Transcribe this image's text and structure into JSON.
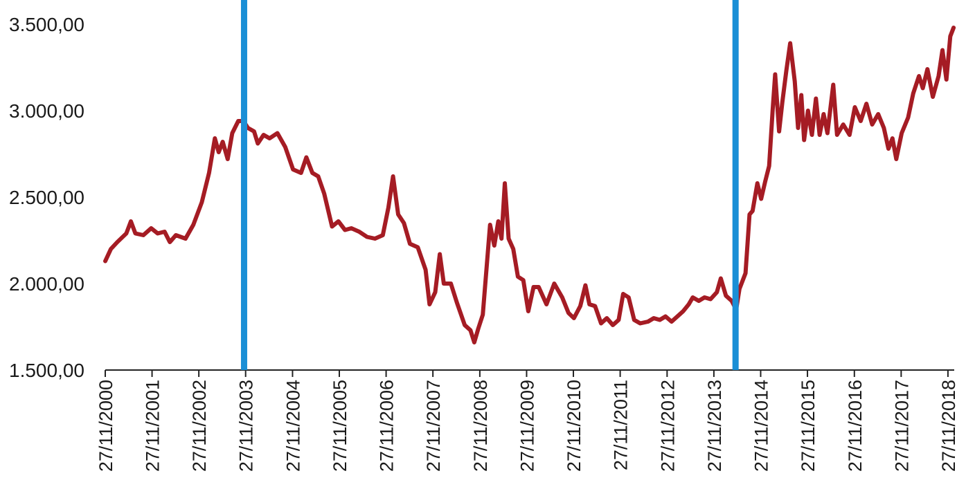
{
  "chart_data": {
    "type": "line",
    "title": "",
    "xlabel": "",
    "ylabel": "",
    "ylim": [
      1500,
      3500
    ],
    "xlim": [
      "2000-11-27",
      "2019-01-15"
    ],
    "y_ticks": [
      {
        "value": 1500,
        "label": "1.500,00"
      },
      {
        "value": 2000,
        "label": "2.000,00"
      },
      {
        "value": 2500,
        "label": "2.500,00"
      },
      {
        "value": 3000,
        "label": "3.000,00"
      },
      {
        "value": 3500,
        "label": "3.500,00"
      }
    ],
    "x_ticks": [
      {
        "date": "2000-11-27",
        "label": "27/11/2000"
      },
      {
        "date": "2001-11-27",
        "label": "27/11/2001"
      },
      {
        "date": "2002-11-27",
        "label": "27/11/2002"
      },
      {
        "date": "2003-11-27",
        "label": "27/11/2003"
      },
      {
        "date": "2004-11-27",
        "label": "27/11/2004"
      },
      {
        "date": "2005-11-27",
        "label": "27/11/2005"
      },
      {
        "date": "2006-11-27",
        "label": "27/11/2006"
      },
      {
        "date": "2007-11-27",
        "label": "27/11/2007"
      },
      {
        "date": "2008-11-27",
        "label": "27/11/2008"
      },
      {
        "date": "2009-11-27",
        "label": "27/11/2009"
      },
      {
        "date": "2010-11-27",
        "label": "27/11/2010"
      },
      {
        "date": "2011-11-27",
        "label": "27/11/2011"
      },
      {
        "date": "2012-11-27",
        "label": "27/11/2012"
      },
      {
        "date": "2013-11-27",
        "label": "27/11/2013"
      },
      {
        "date": "2014-11-27",
        "label": "27/11/2014"
      },
      {
        "date": "2015-11-27",
        "label": "27/11/2015"
      },
      {
        "date": "2016-11-27",
        "label": "27/11/2016"
      },
      {
        "date": "2017-11-27",
        "label": "27/11/2017"
      },
      {
        "date": "2018-11-27",
        "label": "27/11/2018"
      }
    ],
    "series": [
      {
        "color": "#a51c24",
        "points": [
          [
            "2000-11-27",
            2130
          ],
          [
            "2001-01-10",
            2200
          ],
          [
            "2001-03-01",
            2240
          ],
          [
            "2001-05-10",
            2290
          ],
          [
            "2001-06-15",
            2360
          ],
          [
            "2001-07-20",
            2290
          ],
          [
            "2001-09-20",
            2280
          ],
          [
            "2001-11-20",
            2320
          ],
          [
            "2002-01-10",
            2290
          ],
          [
            "2002-03-05",
            2300
          ],
          [
            "2002-04-15",
            2240
          ],
          [
            "2002-06-01",
            2280
          ],
          [
            "2002-08-15",
            2260
          ],
          [
            "2002-10-15",
            2340
          ],
          [
            "2002-12-20",
            2470
          ],
          [
            "2003-02-15",
            2640
          ],
          [
            "2003-04-01",
            2840
          ],
          [
            "2003-05-01",
            2760
          ],
          [
            "2003-06-01",
            2820
          ],
          [
            "2003-07-10",
            2720
          ],
          [
            "2003-08-15",
            2870
          ],
          [
            "2003-10-01",
            2940
          ],
          [
            "2003-11-10",
            2940
          ],
          [
            "2003-12-15",
            2900
          ],
          [
            "2004-02-01",
            2880
          ],
          [
            "2004-03-01",
            2810
          ],
          [
            "2004-04-15",
            2860
          ],
          [
            "2004-06-01",
            2840
          ],
          [
            "2004-08-01",
            2870
          ],
          [
            "2004-10-01",
            2790
          ],
          [
            "2004-12-01",
            2660
          ],
          [
            "2005-02-01",
            2640
          ],
          [
            "2005-03-15",
            2730
          ],
          [
            "2005-05-01",
            2640
          ],
          [
            "2005-06-15",
            2620
          ],
          [
            "2005-08-01",
            2520
          ],
          [
            "2005-10-01",
            2330
          ],
          [
            "2005-11-20",
            2360
          ],
          [
            "2006-01-10",
            2310
          ],
          [
            "2006-03-01",
            2320
          ],
          [
            "2006-05-01",
            2300
          ],
          [
            "2006-07-01",
            2270
          ],
          [
            "2006-09-01",
            2260
          ],
          [
            "2006-11-01",
            2280
          ],
          [
            "2006-12-15",
            2440
          ],
          [
            "2007-01-20",
            2620
          ],
          [
            "2007-03-01",
            2400
          ],
          [
            "2007-04-15",
            2350
          ],
          [
            "2007-06-01",
            2230
          ],
          [
            "2007-08-01",
            2210
          ],
          [
            "2007-10-01",
            2080
          ],
          [
            "2007-11-01",
            1880
          ],
          [
            "2007-12-15",
            1950
          ],
          [
            "2008-01-20",
            2170
          ],
          [
            "2008-02-20",
            2000
          ],
          [
            "2008-04-15",
            2000
          ],
          [
            "2008-06-01",
            1890
          ],
          [
            "2008-08-01",
            1760
          ],
          [
            "2008-09-15",
            1730
          ],
          [
            "2008-10-15",
            1660
          ],
          [
            "2008-11-15",
            1740
          ],
          [
            "2008-12-20",
            1820
          ],
          [
            "2009-02-15",
            2340
          ],
          [
            "2009-03-20",
            2220
          ],
          [
            "2009-04-20",
            2360
          ],
          [
            "2009-05-15",
            2260
          ],
          [
            "2009-06-10",
            2580
          ],
          [
            "2009-07-10",
            2260
          ],
          [
            "2009-08-15",
            2200
          ],
          [
            "2009-09-20",
            2040
          ],
          [
            "2009-11-01",
            2020
          ],
          [
            "2009-12-10",
            1840
          ],
          [
            "2010-01-20",
            1980
          ],
          [
            "2010-03-01",
            1980
          ],
          [
            "2010-05-01",
            1880
          ],
          [
            "2010-07-01",
            2000
          ],
          [
            "2010-09-01",
            1920
          ],
          [
            "2010-10-20",
            1830
          ],
          [
            "2010-12-01",
            1800
          ],
          [
            "2011-01-20",
            1870
          ],
          [
            "2011-03-01",
            1990
          ],
          [
            "2011-04-01",
            1880
          ],
          [
            "2011-05-15",
            1870
          ],
          [
            "2011-07-01",
            1770
          ],
          [
            "2011-08-15",
            1800
          ],
          [
            "2011-10-01",
            1760
          ],
          [
            "2011-11-15",
            1790
          ],
          [
            "2011-12-20",
            1940
          ],
          [
            "2012-02-01",
            1920
          ],
          [
            "2012-03-15",
            1790
          ],
          [
            "2012-05-01",
            1770
          ],
          [
            "2012-07-01",
            1780
          ],
          [
            "2012-08-15",
            1800
          ],
          [
            "2012-10-01",
            1790
          ],
          [
            "2012-11-15",
            1810
          ],
          [
            "2013-01-01",
            1780
          ],
          [
            "2013-02-15",
            1810
          ],
          [
            "2013-04-01",
            1840
          ],
          [
            "2013-05-15",
            1880
          ],
          [
            "2013-06-15",
            1920
          ],
          [
            "2013-08-01",
            1900
          ],
          [
            "2013-09-15",
            1920
          ],
          [
            "2013-11-01",
            1910
          ],
          [
            "2013-12-20",
            1950
          ],
          [
            "2014-01-20",
            2030
          ],
          [
            "2014-03-01",
            1930
          ],
          [
            "2014-04-15",
            1900
          ],
          [
            "2014-05-20",
            1850
          ],
          [
            "2014-06-15",
            1970
          ],
          [
            "2014-08-01",
            2060
          ],
          [
            "2014-09-01",
            2400
          ],
          [
            "2014-09-25",
            2420
          ],
          [
            "2014-11-01",
            2580
          ],
          [
            "2014-12-01",
            2490
          ],
          [
            "2015-01-01",
            2590
          ],
          [
            "2015-02-01",
            2680
          ],
          [
            "2015-03-01",
            3010
          ],
          [
            "2015-03-20",
            3210
          ],
          [
            "2015-04-20",
            2880
          ],
          [
            "2015-05-15",
            3050
          ],
          [
            "2015-06-15",
            3230
          ],
          [
            "2015-07-15",
            3390
          ],
          [
            "2015-08-20",
            3170
          ],
          [
            "2015-09-15",
            2900
          ],
          [
            "2015-10-10",
            3090
          ],
          [
            "2015-11-01",
            2830
          ],
          [
            "2015-12-01",
            3000
          ],
          [
            "2016-01-01",
            2860
          ],
          [
            "2016-02-01",
            3070
          ],
          [
            "2016-03-01",
            2860
          ],
          [
            "2016-04-01",
            2980
          ],
          [
            "2016-05-01",
            2870
          ],
          [
            "2016-06-15",
            3150
          ],
          [
            "2016-07-15",
            2860
          ],
          [
            "2016-09-01",
            2920
          ],
          [
            "2016-10-20",
            2860
          ],
          [
            "2016-12-01",
            3020
          ],
          [
            "2017-01-15",
            2940
          ],
          [
            "2017-03-01",
            3040
          ],
          [
            "2017-04-15",
            2920
          ],
          [
            "2017-06-01",
            2980
          ],
          [
            "2017-07-15",
            2900
          ],
          [
            "2017-08-20",
            2780
          ],
          [
            "2017-09-20",
            2840
          ],
          [
            "2017-10-20",
            2720
          ],
          [
            "2017-12-01",
            2870
          ],
          [
            "2018-01-20",
            2960
          ],
          [
            "2018-03-01",
            3100
          ],
          [
            "2018-04-15",
            3200
          ],
          [
            "2018-05-15",
            3130
          ],
          [
            "2018-06-20",
            3240
          ],
          [
            "2018-08-01",
            3080
          ],
          [
            "2018-09-15",
            3200
          ],
          [
            "2018-10-15",
            3350
          ],
          [
            "2018-11-15",
            3180
          ],
          [
            "2018-12-15",
            3430
          ],
          [
            "2019-01-10",
            3480
          ]
        ]
      }
    ],
    "annotations": [
      {
        "type": "vertical-line",
        "date": "2003-11-15",
        "color": "#1a8fd6"
      },
      {
        "type": "vertical-line",
        "date": "2014-05-15",
        "color": "#1a8fd6"
      }
    ]
  }
}
